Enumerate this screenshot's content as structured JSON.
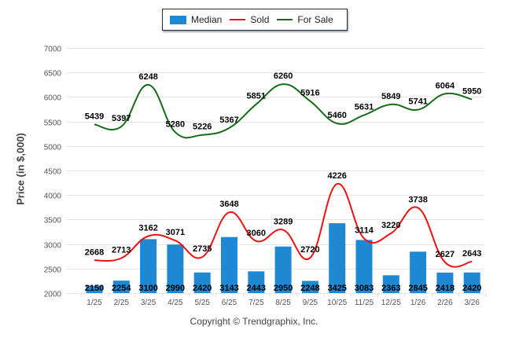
{
  "chart_data": {
    "type": "bar+line",
    "title": "",
    "xlabel": "",
    "ylabel": "Price (in $,000)",
    "ylim": [
      2000,
      7000
    ],
    "yticks": [
      2000,
      2500,
      3000,
      3500,
      4000,
      4500,
      5000,
      5500,
      6000,
      6500,
      7000
    ],
    "grid": true,
    "legend_position": "top-center",
    "categories": [
      "1/25",
      "2/25",
      "3/25",
      "4/25",
      "5/25",
      "6/25",
      "7/25",
      "8/25",
      "9/25",
      "10/25",
      "11/25",
      "12/25",
      "1/26",
      "2/26",
      "3/26"
    ],
    "series": [
      {
        "name": "Median",
        "type": "bar",
        "color": "#1e88d3",
        "values": [
          2150,
          2254,
          3100,
          2990,
          2420,
          3143,
          2443,
          2950,
          2248,
          3425,
          3083,
          2363,
          2845,
          2418,
          2420
        ]
      },
      {
        "name": "Sold",
        "type": "line",
        "color": "#ee1111",
        "values": [
          2668,
          2713,
          3162,
          3071,
          2735,
          3648,
          3060,
          3289,
          2720,
          4226,
          3114,
          3220,
          3738,
          2627,
          2643
        ]
      },
      {
        "name": "For Sale",
        "type": "line",
        "color": "#166b16",
        "values": [
          5439,
          5397,
          6248,
          5280,
          5226,
          5367,
          5851,
          6260,
          5916,
          5460,
          5631,
          5849,
          5741,
          6064,
          5950
        ]
      }
    ]
  },
  "legend": {
    "items": [
      {
        "label": "Median"
      },
      {
        "label": "Sold"
      },
      {
        "label": "For Sale"
      }
    ]
  },
  "footer": {
    "copyright": "Copyright © Trendgraphix, Inc."
  }
}
